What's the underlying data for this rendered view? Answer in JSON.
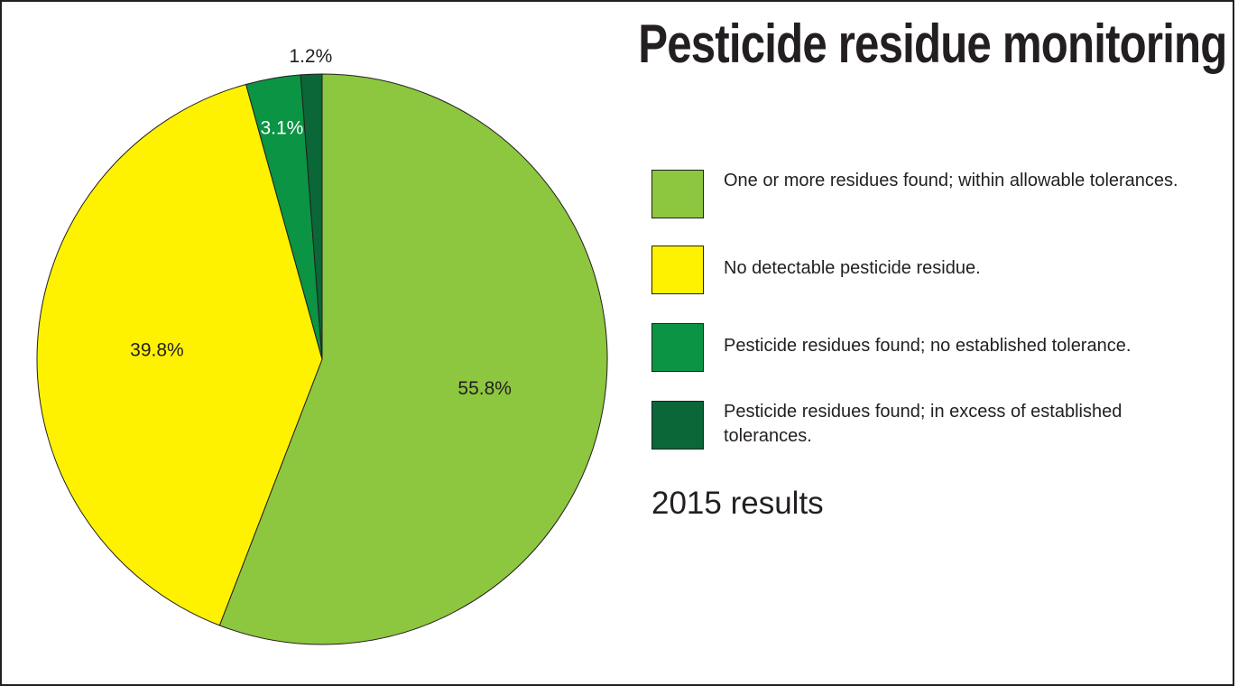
{
  "chart_data": {
    "type": "pie",
    "title": "Pesticide residue monitoring",
    "subtitle": "2015 results",
    "slices": [
      {
        "label": "One or more residues found; within allowable tolerances.",
        "value": 55.8,
        "display": "55.8%",
        "color": "#8dc63f"
      },
      {
        "label": "No detectable pesticide residue.",
        "value": 39.8,
        "display": "39.8%",
        "color": "#fff200"
      },
      {
        "label": "Pesticide residues found; no established tolerance.",
        "value": 3.1,
        "display": "3.1%",
        "color": "#0b9444"
      },
      {
        "label": "Pesticide residues found; in excess of established tolerances.",
        "value": 1.2,
        "display": "1.2%",
        "color": "#0b6638"
      }
    ],
    "legend_position": "right"
  }
}
